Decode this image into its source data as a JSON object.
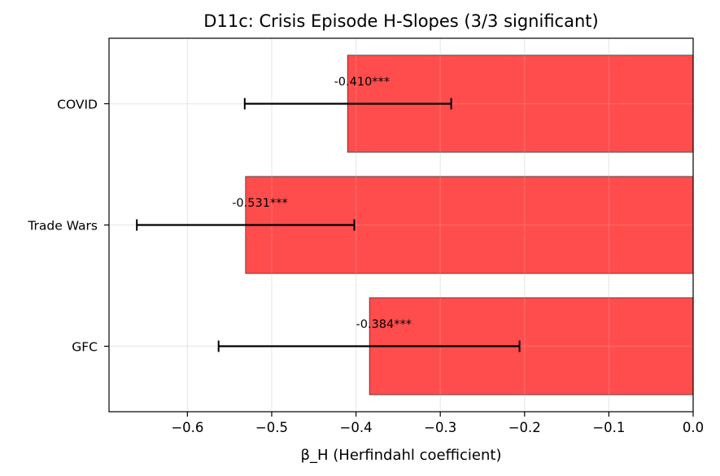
{
  "chart_data": {
    "type": "bar",
    "orientation": "horizontal",
    "title": "D11c: Crisis Episode H-Slopes (3/3 significant)",
    "xlabel": "β_H (Herfindahl coefficient)",
    "ylabel": "",
    "categories": [
      "GFC",
      "Trade Wars",
      "COVID"
    ],
    "values": [
      -0.384,
      -0.531,
      -0.41
    ],
    "error_low": [
      -0.563,
      -0.66,
      -0.532
    ],
    "error_high": [
      -0.206,
      -0.402,
      -0.287
    ],
    "data_labels": [
      "-0.384***",
      "-0.531***",
      "-0.410***"
    ],
    "xlim": [
      -0.693,
      0.0
    ],
    "xticks": [
      -0.6,
      -0.5,
      -0.4,
      -0.3,
      -0.2,
      -0.1,
      0.0
    ],
    "xtick_labels": [
      "−0.6",
      "−0.5",
      "−0.4",
      "−0.3",
      "−0.2",
      "−0.1",
      "0.0"
    ],
    "grid": true,
    "bar_color": "#ff4d4d",
    "edge_color": "#333333",
    "errorbar_color": "#000000"
  }
}
